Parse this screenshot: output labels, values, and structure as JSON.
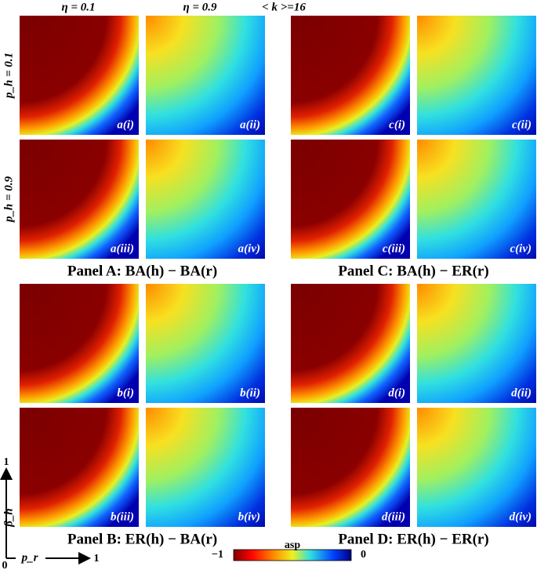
{
  "header": {
    "eta_low": "η = 0.1",
    "eta_high": "η = 0.9",
    "degree": "< k >=16"
  },
  "row_labels": [
    "p_h = 0.1",
    "p_h = 0.9"
  ],
  "panels": [
    {
      "title": "Panel A: BA(h) − BA(r)",
      "tiles": [
        "a(i)",
        "a(ii)",
        "a(iii)",
        "a(iv)"
      ]
    },
    {
      "title": "Panel B: ER(h) − BA(r)",
      "tiles": [
        "b(i)",
        "b(ii)",
        "b(iii)",
        "b(iv)"
      ]
    },
    {
      "title": "Panel C: BA(h) − ER(r)",
      "tiles": [
        "c(i)",
        "c(ii)",
        "c(iii)",
        "c(iv)"
      ]
    },
    {
      "title": "Panel D: ER(h) − ER(r)",
      "tiles": [
        "d(i)",
        "d(ii)",
        "d(iii)",
        "d(iv)"
      ]
    }
  ],
  "colorbar": {
    "min_label": "−1",
    "label": "asp",
    "max_label": "0"
  },
  "axes": {
    "y_label": "β_h",
    "y_end": "1",
    "x_label": "p_r",
    "x_end": "1",
    "origin": "0"
  }
}
